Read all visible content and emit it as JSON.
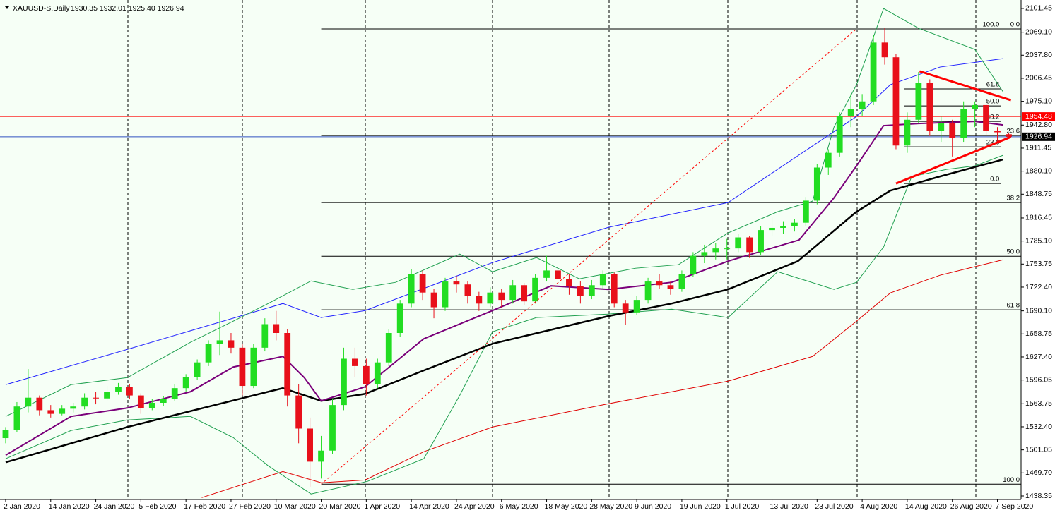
{
  "chart_data": {
    "type": "candlestick",
    "title": "XAUUSD-S,Daily",
    "subtitle": "1930.35 1932.01 1925.40 1926.94",
    "categories": [
      "2 Jan 2020",
      null,
      null,
      null,
      "14 Jan 2020",
      null,
      null,
      null,
      "24 Jan 2020",
      null,
      null,
      null,
      "5 Feb 2020",
      null,
      null,
      null,
      "17 Feb 2020",
      null,
      null,
      null,
      "27 Feb 2020",
      null,
      null,
      null,
      "10 Mar 2020",
      null,
      null,
      null,
      "20 Mar 2020",
      null,
      null,
      null,
      "1 Apr 2020",
      null,
      null,
      null,
      "14 Apr 2020",
      null,
      null,
      null,
      "24 Apr 2020",
      null,
      null,
      null,
      "6 May 2020",
      null,
      null,
      null,
      "18 May 2020",
      null,
      null,
      null,
      "28 May 2020",
      null,
      null,
      null,
      "9 Jun 2020",
      null,
      null,
      null,
      "19 Jun 2020",
      null,
      null,
      null,
      "1 Jul 2020",
      null,
      null,
      null,
      "13 Jul 2020",
      null,
      null,
      null,
      "23 Jul 2020",
      null,
      null,
      null,
      "4 Aug 2020",
      null,
      null,
      null,
      "14 Aug 2020",
      null,
      null,
      null,
      "26 Aug 2020",
      null,
      null,
      null,
      "7 Sep 2020",
      null
    ],
    "open": [
      1517,
      1528,
      1560,
      1572,
      1555,
      1550,
      1557,
      1560,
      1572,
      1571,
      1580,
      1587,
      1575,
      1558,
      1565,
      1570,
      1585,
      1600,
      1620,
      1645,
      1650,
      1640,
      1588,
      1640,
      1672,
      1660,
      1575,
      1530,
      1485,
      1500,
      1562,
      1625,
      1615,
      1590,
      1620,
      1660,
      1700,
      1740,
      1715,
      1695,
      1730,
      1726,
      1710,
      1700,
      1715,
      1705,
      1725,
      1703,
      1735,
      1745,
      1733,
      1724,
      1710,
      1725,
      1740,
      1700,
      1688,
      1705,
      1730,
      1725,
      1720,
      1740,
      1765,
      1770,
      1775,
      1775,
      1790,
      1770,
      1800,
      1803,
      1805,
      1810,
      1840,
      1885,
      1905,
      1955,
      1965,
      1975,
      2055,
      2035,
      1915,
      1950,
      2000,
      1935,
      1945,
      1925,
      1965,
      1970,
      1935,
      1930.35
    ],
    "high": [
      1532,
      1566,
      1611,
      1575,
      1562,
      1562,
      1565,
      1578,
      1580,
      1588,
      1592,
      1590,
      1578,
      1570,
      1574,
      1590,
      1604,
      1624,
      1650,
      1689,
      1660,
      1645,
      1645,
      1680,
      1690,
      1665,
      1590,
      1545,
      1520,
      1570,
      1640,
      1640,
      1625,
      1625,
      1665,
      1705,
      1747,
      1745,
      1720,
      1735,
      1738,
      1730,
      1716,
      1722,
      1720,
      1732,
      1728,
      1740,
      1765,
      1750,
      1740,
      1730,
      1732,
      1745,
      1742,
      1705,
      1710,
      1735,
      1740,
      1730,
      1745,
      1770,
      1780,
      1782,
      1788,
      1795,
      1792,
      1805,
      1818,
      1812,
      1815,
      1845,
      1890,
      1910,
      1960,
      1985,
      1985,
      2065,
      2075,
      2040,
      1960,
      2015,
      2005,
      1955,
      1950,
      1975,
      1975,
      1972,
      1940,
      1932.01
    ],
    "low": [
      1510,
      1525,
      1552,
      1548,
      1545,
      1548,
      1552,
      1556,
      1563,
      1568,
      1576,
      1570,
      1550,
      1555,
      1561,
      1568,
      1580,
      1596,
      1615,
      1630,
      1632,
      1575,
      1585,
      1635,
      1650,
      1560,
      1510,
      1451,
      1462,
      1495,
      1555,
      1600,
      1575,
      1585,
      1615,
      1655,
      1695,
      1705,
      1680,
      1690,
      1715,
      1700,
      1690,
      1695,
      1695,
      1700,
      1698,
      1700,
      1730,
      1725,
      1712,
      1700,
      1706,
      1720,
      1695,
      1671,
      1684,
      1700,
      1720,
      1712,
      1716,
      1736,
      1755,
      1760,
      1760,
      1770,
      1762,
      1766,
      1792,
      1795,
      1798,
      1806,
      1835,
      1875,
      1900,
      1940,
      1955,
      1970,
      2025,
      1910,
      1905,
      1945,
      1928,
      1920,
      1900,
      1920,
      1940,
      1928,
      1918,
      1925.4
    ],
    "close": [
      1528,
      1560,
      1572,
      1555,
      1550,
      1557,
      1560,
      1572,
      1571,
      1580,
      1587,
      1575,
      1558,
      1565,
      1570,
      1585,
      1600,
      1620,
      1645,
      1650,
      1640,
      1588,
      1640,
      1672,
      1660,
      1575,
      1530,
      1485,
      1500,
      1562,
      1625,
      1615,
      1590,
      1620,
      1660,
      1700,
      1740,
      1715,
      1695,
      1730,
      1726,
      1710,
      1700,
      1715,
      1705,
      1725,
      1703,
      1735,
      1745,
      1733,
      1724,
      1710,
      1725,
      1740,
      1700,
      1688,
      1705,
      1730,
      1725,
      1720,
      1740,
      1765,
      1770,
      1775,
      1775,
      1790,
      1770,
      1800,
      1803,
      1805,
      1810,
      1840,
      1885,
      1905,
      1955,
      1965,
      1975,
      2055,
      2035,
      1915,
      1950,
      2000,
      1935,
      1945,
      1925,
      1965,
      1970,
      1935,
      1933,
      1926.94
    ],
    "up_color": "#22dd22",
    "down_color": "#e8101a",
    "xlim": [
      -0.5,
      90.1
    ],
    "ylim": [
      1434.5,
      2111
    ],
    "yticks": [
      2101.45,
      {
        "value": 2069.1,
        "label": "2069.10"
      },
      {
        "value": 2037.8,
        "label": "2037.80"
      },
      2006.45,
      {
        "value": 1975.1,
        "label": "1975.10"
      },
      {
        "value": 1942.8,
        "label": "1942.80"
      },
      1911.45,
      {
        "value": 1880.1,
        "label": "1880.10"
      },
      1848.75,
      1816.45,
      {
        "value": 1785.1,
        "label": "1785.10"
      },
      1753.75,
      {
        "value": 1722.4,
        "label": "1722.40"
      },
      {
        "value": 1690.1,
        "label": "1690.10"
      },
      1658.75,
      {
        "value": 1627.4,
        "label": "1627.40"
      },
      1596.05,
      1563.75,
      {
        "value": 1532.4,
        "label": "1532.40"
      },
      1501.05,
      {
        "value": 1469.7,
        "label": "1469.70"
      },
      1438.35
    ],
    "overlays": [
      {
        "color": "#2020ff",
        "width": 1,
        "x": [
          0,
          10.8,
          24.6,
          28,
          31.9,
          43.2,
          53.5,
          64.1,
          75.5,
          78.5,
          82.9,
          88.5
        ],
        "y": [
          1589.7,
          1637.7,
          1700.1,
          1681,
          1690.5,
          1755.8,
          1803.8,
          1837.4,
          1954.5,
          1997.7,
          2021.7,
          2033.2
        ]
      },
      {
        "color": "#e00000",
        "width": 1,
        "x": [
          17.4,
          24.6,
          28,
          31.9,
          37.1,
          43.2,
          53.5,
          64.1,
          71.6,
          75.5,
          78.5,
          82.9,
          88.5
        ],
        "y": [
          1436.1,
          1471.6,
          1456.3,
          1460.1,
          1498.5,
          1532.1,
          1563.8,
          1594.5,
          1628.1,
          1676.1,
          1714.5,
          1738.5,
          1759.6
        ]
      },
      {
        "color": "#20a050",
        "width": 1,
        "x": [
          0,
          5.8,
          10.8,
          16.4,
          20.2,
          23.3,
          27.1,
          30.8,
          34.6,
          40.3,
          43.2,
          47.1,
          50.9,
          55.9,
          59.7,
          64.1,
          68.5,
          71.6,
          73.5,
          75.5,
          77.9,
          81,
          86,
          88.5
        ],
        "y": [
          1546.5,
          1589.7,
          1599.3,
          1647.3,
          1676.1,
          1700.1,
          1730.8,
          1719.3,
          1728.9,
          1767.3,
          1743.3,
          1762.5,
          1733.7,
          1748.1,
          1752.9,
          1796.1,
          1824.9,
          1839.3,
          1940.1,
          1997.7,
          2101.4,
          2074.5,
          2045.7,
          1988.1
        ]
      },
      {
        "color": "#20a050",
        "width": 1,
        "x": [
          0,
          5.8,
          10.8,
          16.4,
          20.2,
          23.3,
          27.1,
          32.1,
          37.1,
          40.3,
          43.2,
          47.1,
          53.4,
          59.1,
          64.1,
          68.5,
          73.5,
          75.5,
          77.9,
          80.4,
          83.5,
          86,
          88.5
        ],
        "y": [
          1489,
          1527.3,
          1541.7,
          1546.5,
          1517.7,
          1479.3,
          1441,
          1458.2,
          1489,
          1575.3,
          1661.7,
          1681,
          1685.7,
          1692.4,
          1681,
          1743.3,
          1719.3,
          1728.9,
          1776.9,
          1872.9,
          1882.5,
          1887.3,
          1901.7
        ]
      },
      {
        "color": "#000000",
        "width": 2.5,
        "x": [
          0,
          10.8,
          18.3,
          24.6,
          28,
          31.9,
          37.1,
          43.2,
          53.5,
          59.1,
          64.1,
          70.3,
          75.5,
          78.5,
          82.9,
          88.5
        ],
        "y": [
          1484.1,
          1532.1,
          1561,
          1585,
          1567.7,
          1577.2,
          1609,
          1645.4,
          1683,
          1700.1,
          1719.3,
          1757.7,
          1825,
          1853.7,
          1872.9,
          1896
        ]
      },
      {
        "color": "#7a007a",
        "width": 2,
        "x": [
          0,
          5.8,
          10.8,
          16.4,
          20.2,
          24.6,
          26.5,
          28,
          31.9,
          37.1,
          43.2,
          48.4,
          53.5,
          59.1,
          64.1,
          70.4,
          73.5,
          75.5,
          77.9,
          81,
          86,
          88.5
        ],
        "y": [
          1493.7,
          1546.5,
          1558,
          1580.1,
          1613.7,
          1628.1,
          1599.3,
          1567.7,
          1586.8,
          1652.1,
          1690.5,
          1724.1,
          1719.3,
          1728.9,
          1757.7,
          1786.5,
          1843.9,
          1887.3,
          1942,
          1944.9,
          1947.8,
          1943
        ]
      }
    ],
    "fibonacci": [
      {
        "from_x": 28,
        "to_x": 90.1,
        "levels": [
          {
            "label": "0.0",
            "price": 2073.6
          },
          {
            "label": "23.6",
            "price": 1928.6
          },
          {
            "label": "38.2",
            "price": 1837.4
          },
          {
            "label": "50.0",
            "price": 1764.4
          },
          {
            "label": "61.8",
            "price": 1691.5
          },
          {
            "label": "100.0",
            "price": 1454.4
          }
        ]
      },
      {
        "from_x": 79.7,
        "to_x": 88.3,
        "levels": [
          {
            "label": "100.0",
            "price": 2073.6
          },
          {
            "label": "61.8",
            "price": 1992
          },
          {
            "label": "50.0",
            "price": 1968.9
          },
          {
            "label": "38.2",
            "price": 1947.8
          },
          {
            "label": "23.6",
            "price": 1913.2
          },
          {
            "label": "0.0",
            "price": 1863.3
          }
        ]
      }
    ],
    "trendlines": [
      {
        "color": "#ff0000",
        "width": 3,
        "dash": false,
        "x": [
          81.1,
          89.2
        ],
        "y": [
          2016,
          1976.6
        ]
      },
      {
        "color": "#ff0000",
        "width": 3,
        "dash": false,
        "x": [
          79,
          89.2
        ],
        "y": [
          1863.3,
          1926.7
        ]
      },
      {
        "color": "#ff0000",
        "width": 1,
        "dash": true,
        "x": [
          28,
          75.5
        ],
        "y": [
          1454.4,
          2073.6
        ]
      }
    ],
    "price_lines": [
      {
        "value": 1954.48,
        "color": "#ff0000"
      },
      {
        "value": 1926.94,
        "color": "#000000"
      }
    ]
  }
}
